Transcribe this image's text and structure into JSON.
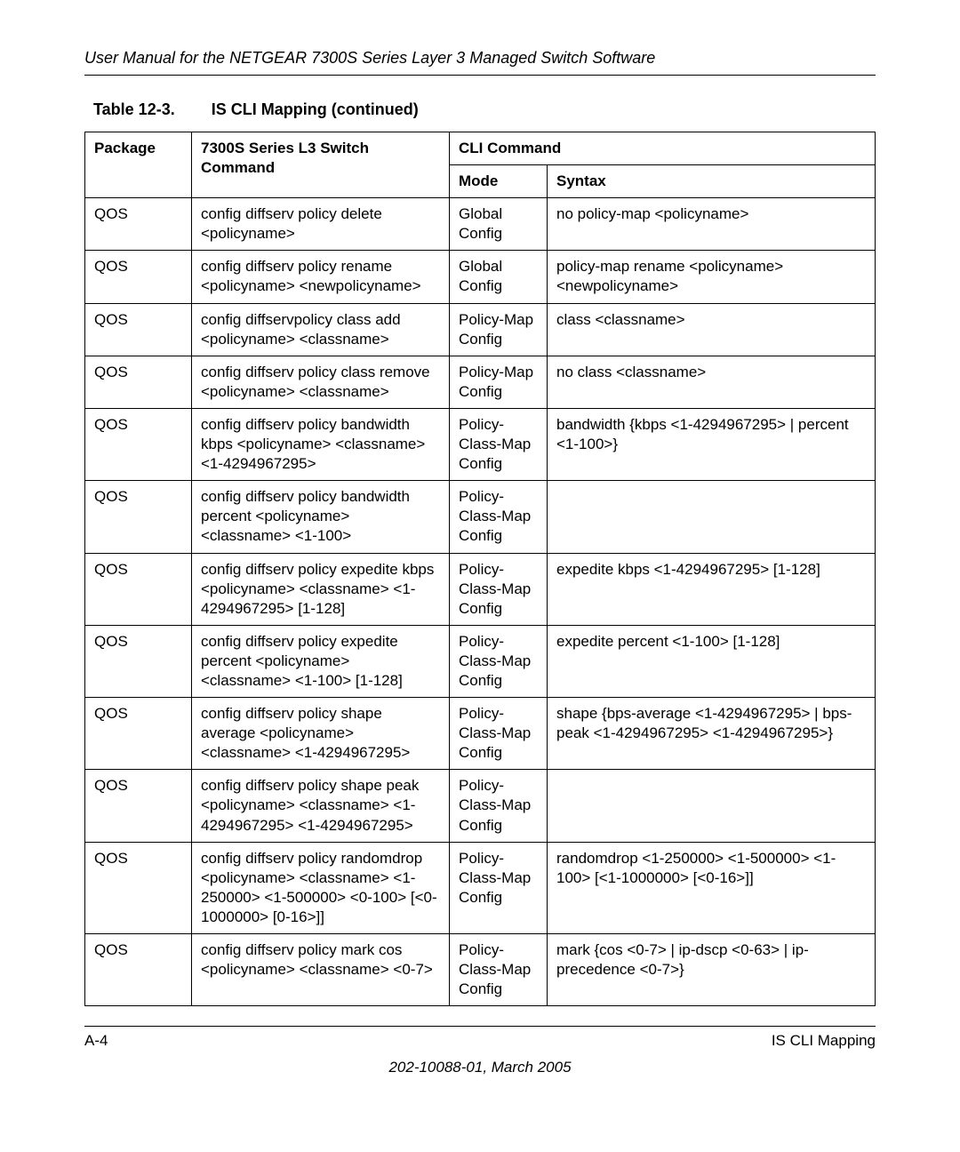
{
  "header": {
    "title": "User Manual for the NETGEAR 7300S Series Layer 3 Managed Switch Software"
  },
  "table": {
    "caption_label": "Table 12-3.",
    "caption_title": "IS CLI Mapping  (continued)",
    "columns": {
      "package": "Package",
      "command": "7300S Series L3 Switch Command",
      "cli_command": "CLI Command",
      "mode": "Mode",
      "syntax": "Syntax"
    },
    "rows": [
      {
        "package": "QOS",
        "command": "config diffserv policy delete <policyname>",
        "mode": "Global Config",
        "syntax": "no policy-map <policyname>"
      },
      {
        "package": "QOS",
        "command": "config diffserv policy rename <policyname> <newpolicyname>",
        "mode": "Global Config",
        "syntax": "policy-map rename <policyname> <newpolicyname>"
      },
      {
        "package": "QOS",
        "command": "config diffservpolicy class add <policyname> <classname>",
        "mode": "Policy-Map Config",
        "syntax": "class <classname>"
      },
      {
        "package": "QOS",
        "command": "config diffserv policy class remove <policyname> <classname>",
        "mode": "Policy-Map Config",
        "syntax": "no class <classname>"
      },
      {
        "package": "QOS",
        "command": "config diffserv policy bandwidth kbps <policyname> <classname> <1-4294967295>",
        "mode": "Policy-Class-Map Config",
        "syntax": "bandwidth {kbps <1-4294967295> | percent <1-100>}"
      },
      {
        "package": "QOS",
        "command": "config diffserv policy bandwidth percent <policyname> <classname> <1-100>",
        "mode": "Policy-Class-Map Config",
        "syntax": ""
      },
      {
        "package": "QOS",
        "command": "config diffserv policy expedite kbps <policyname> <classname> <1-4294967295> [1-128]",
        "mode": "Policy-Class-Map Config",
        "syntax": "expedite kbps <1-4294967295> [1-128]"
      },
      {
        "package": "QOS",
        "command": "config diffserv policy expedite percent <policyname> <classname> <1-100> [1-128]",
        "mode": "Policy-Class-Map Config",
        "syntax": "expedite percent <1-100> [1-128]"
      },
      {
        "package": "QOS",
        "command": "config diffserv policy shape average <policyname> <classname> <1-4294967295>",
        "mode": "Policy-Class-Map Config",
        "syntax": "shape {bps-average <1-4294967295> | bps-peak <1-4294967295> <1-4294967295>}"
      },
      {
        "package": "QOS",
        "command": "config diffserv policy shape peak <policyname> <classname> <1-4294967295> <1-4294967295>",
        "mode": "Policy-Class-Map Config",
        "syntax": ""
      },
      {
        "package": "QOS",
        "command": "config diffserv policy randomdrop <policyname> <classname> <1-250000> <1-500000> <0-100> [<0-1000000> [0-16>]]",
        "mode": "Policy-Class-Map Config",
        "syntax": "randomdrop <1-250000> <1-500000> <1-100> [<1-1000000> [<0-16>]]"
      },
      {
        "package": "QOS",
        "command": "config diffserv policy mark cos <policyname> <classname> <0-7>",
        "mode": "Policy-Class-Map Config",
        "syntax": "mark {cos <0-7> | ip-dscp <0-63> | ip-precedence <0-7>}"
      }
    ]
  },
  "footer": {
    "page_num": "A-4",
    "section": "IS CLI Mapping",
    "doc_info": "202-10088-01, March 2005"
  }
}
